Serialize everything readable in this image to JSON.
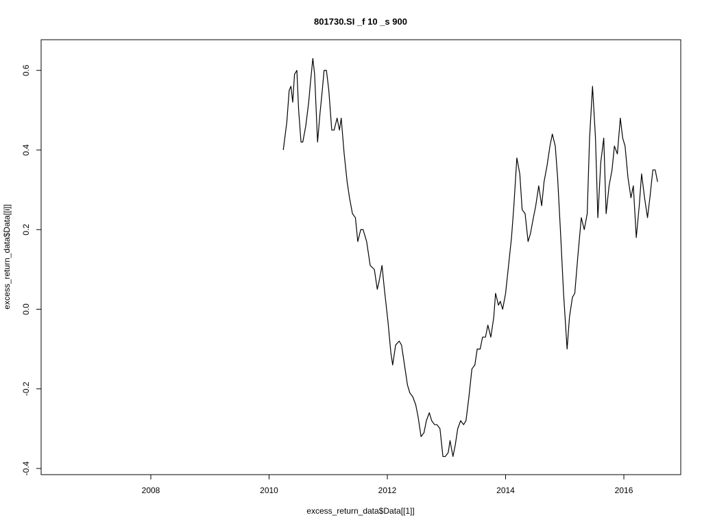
{
  "chart_data": {
    "type": "line",
    "title": "801730.SI _f 10 _s 900",
    "x_label": "excess_return_data$Data[[1]]",
    "y_label": "excess_return_data$Data[[i]]",
    "xlim": [
      2006.145,
      2016.962
    ],
    "xticks": [
      2008,
      2010,
      2012,
      2014,
      2016
    ],
    "ylim": [
      -0.4155,
      0.677
    ],
    "yticks": [
      0.6,
      0.4,
      0.2,
      {
        "value": 0,
        "label": "0.0"
      },
      -0.2,
      -0.4
    ],
    "series": [
      {
        "color": "#000000",
        "x": [
          2010.24,
          2010.3,
          2010.34,
          2010.37,
          2010.4,
          2010.43,
          2010.47,
          2010.5,
          2010.54,
          2010.57,
          2010.62,
          2010.67,
          2010.7,
          2010.74,
          2010.77,
          2010.82,
          2010.86,
          2010.9,
          2010.93,
          2010.97,
          2011.01,
          2011.06,
          2011.1,
          2011.15,
          2011.19,
          2011.22,
          2011.27,
          2011.32,
          2011.36,
          2011.41,
          2011.46,
          2011.5,
          2011.55,
          2011.59,
          2011.65,
          2011.71,
          2011.78,
          2011.83,
          2011.86,
          2011.91,
          2011.95,
          2012.01,
          2012.06,
          2012.09,
          2012.14,
          2012.2,
          2012.24,
          2012.29,
          2012.34,
          2012.38,
          2012.43,
          2012.48,
          2012.52,
          2012.57,
          2012.62,
          2012.66,
          2012.71,
          2012.75,
          2012.8,
          2012.84,
          2012.89,
          2012.94,
          2012.98,
          2013.03,
          2013.06,
          2013.11,
          2013.15,
          2013.19,
          2013.24,
          2013.29,
          2013.33,
          2013.38,
          2013.43,
          2013.48,
          2013.52,
          2013.57,
          2013.61,
          2013.66,
          2013.7,
          2013.75,
          2013.8,
          2013.83,
          2013.88,
          2013.91,
          2013.95,
          2014.0,
          2014.05,
          2014.1,
          2014.14,
          2014.19,
          2014.24,
          2014.28,
          2014.33,
          2014.38,
          2014.42,
          2014.47,
          2014.51,
          2014.56,
          2014.61,
          2014.65,
          2014.7,
          2014.75,
          2014.79,
          2014.84,
          2014.88,
          2014.93,
          2014.98,
          2015.04,
          2015.08,
          2015.13,
          2015.17,
          2015.22,
          2015.28,
          2015.33,
          2015.38,
          2015.42,
          2015.47,
          2015.52,
          2015.56,
          2015.61,
          2015.66,
          2015.7,
          2015.75,
          2015.8,
          2015.84,
          2015.89,
          2015.94,
          2015.98,
          2016.02,
          2016.07,
          2016.12,
          2016.16,
          2016.21,
          2016.26,
          2016.3,
          2016.35,
          2016.4,
          2016.44,
          2016.49,
          2016.53,
          2016.57
        ],
        "values": [
          0.4,
          0.47,
          0.55,
          0.56,
          0.52,
          0.59,
          0.6,
          0.5,
          0.42,
          0.42,
          0.46,
          0.52,
          0.57,
          0.63,
          0.59,
          0.42,
          0.49,
          0.55,
          0.6,
          0.6,
          0.55,
          0.45,
          0.45,
          0.48,
          0.45,
          0.48,
          0.39,
          0.32,
          0.28,
          0.24,
          0.23,
          0.17,
          0.2,
          0.2,
          0.17,
          0.11,
          0.1,
          0.05,
          0.07,
          0.11,
          0.05,
          -0.03,
          -0.11,
          -0.14,
          -0.09,
          -0.08,
          -0.09,
          -0.14,
          -0.19,
          -0.21,
          -0.22,
          -0.24,
          -0.27,
          -0.32,
          -0.31,
          -0.28,
          -0.26,
          -0.28,
          -0.29,
          -0.29,
          -0.3,
          -0.37,
          -0.37,
          -0.36,
          -0.33,
          -0.37,
          -0.34,
          -0.3,
          -0.28,
          -0.29,
          -0.28,
          -0.22,
          -0.15,
          -0.14,
          -0.1,
          -0.1,
          -0.07,
          -0.07,
          -0.04,
          -0.07,
          -0.02,
          0.04,
          0.01,
          0.02,
          0.0,
          0.04,
          0.11,
          0.18,
          0.26,
          0.38,
          0.34,
          0.25,
          0.24,
          0.17,
          0.19,
          0.23,
          0.26,
          0.31,
          0.26,
          0.32,
          0.36,
          0.41,
          0.44,
          0.41,
          0.33,
          0.19,
          0.04,
          -0.1,
          -0.02,
          0.03,
          0.04,
          0.13,
          0.23,
          0.2,
          0.24,
          0.43,
          0.56,
          0.43,
          0.23,
          0.37,
          0.43,
          0.24,
          0.31,
          0.35,
          0.41,
          0.39,
          0.48,
          0.43,
          0.41,
          0.33,
          0.28,
          0.31,
          0.18,
          0.26,
          0.34,
          0.28,
          0.23,
          0.28,
          0.35,
          0.35,
          0.32
        ]
      }
    ]
  }
}
